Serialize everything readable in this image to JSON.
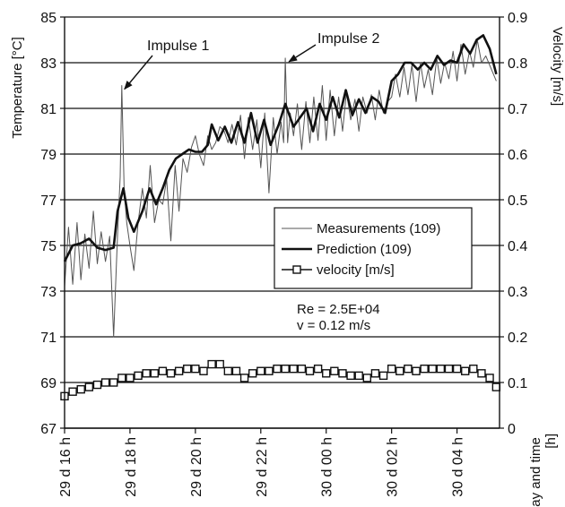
{
  "chart_data": {
    "type": "line",
    "ylabel_left": "Temperature [°C]",
    "ylabel_right": "Velocity [m/s]",
    "xlabel": "Day and time [h]",
    "ylim_left": [
      67,
      85
    ],
    "ylim_right": [
      0,
      0.9
    ],
    "y_ticks_left": [
      "67",
      "69",
      "71",
      "73",
      "75",
      "77",
      "79",
      "81",
      "83",
      "85"
    ],
    "y_ticks_right": [
      "0",
      "0.1",
      "0.2",
      "0.3",
      "0.4",
      "0.5",
      "0.6",
      "0.7",
      "0.8",
      "0.9"
    ],
    "x_ticks": [
      "29 d 16 h",
      "29 d 18 h",
      "29 d 20 h",
      "29 d 22 h",
      "30 d 00 h",
      "30 d 02 h",
      "30 d 04 h"
    ],
    "x_tick_hours": [
      16,
      18,
      20,
      22,
      24,
      26,
      28
    ],
    "xlim_hours": [
      16,
      29.3
    ],
    "grid": "horizontal",
    "legend_position": "center-right",
    "legend": [
      "Measurements (109)",
      "Prediction (109)",
      "velocity [m/s]"
    ],
    "annotations": [
      {
        "text": "Impulse 1",
        "x_hour": 17.75,
        "y": 82
      },
      {
        "text": "Impulse 2",
        "x_hour": 22.75,
        "y": 83.2
      }
    ],
    "stats": [
      "Re = 2.5E+04",
      "v = 0.12 m/s"
    ],
    "series": [
      {
        "name": "Measurements (109)",
        "axis": "left",
        "x": [
          16.0,
          16.12,
          16.25,
          16.38,
          16.5,
          16.62,
          16.75,
          16.88,
          17.0,
          17.12,
          17.25,
          17.38,
          17.5,
          17.62,
          17.7,
          17.75,
          17.82,
          17.9,
          18.0,
          18.12,
          18.25,
          18.38,
          18.5,
          18.62,
          18.75,
          18.88,
          19.0,
          19.12,
          19.25,
          19.38,
          19.5,
          19.62,
          19.75,
          19.88,
          20.0,
          20.12,
          20.25,
          20.38,
          20.5,
          20.62,
          20.75,
          20.88,
          21.0,
          21.12,
          21.25,
          21.38,
          21.5,
          21.62,
          21.75,
          21.88,
          22.0,
          22.12,
          22.25,
          22.38,
          22.5,
          22.62,
          22.7,
          22.75,
          22.82,
          22.9,
          23.0,
          23.12,
          23.25,
          23.38,
          23.5,
          23.62,
          23.75,
          23.88,
          24.0,
          24.12,
          24.25,
          24.38,
          24.5,
          24.62,
          24.75,
          24.88,
          25.0,
          25.12,
          25.25,
          25.38,
          25.5,
          25.62,
          25.75,
          25.88,
          26.0,
          26.12,
          26.25,
          26.38,
          26.5,
          26.62,
          26.75,
          26.88,
          27.0,
          27.12,
          27.25,
          27.38,
          27.5,
          27.62,
          27.75,
          27.88,
          28.0,
          28.12,
          28.25,
          28.38,
          28.5,
          28.62,
          28.75,
          28.88,
          29.2
        ],
        "y": [
          73.2,
          75.8,
          73.3,
          76.0,
          73.5,
          75.5,
          74.0,
          76.5,
          74.2,
          75.6,
          74.3,
          75.4,
          71.0,
          75.5,
          78.0,
          82.0,
          77.5,
          76.0,
          75.0,
          73.9,
          76.0,
          77.5,
          76.2,
          78.5,
          76.0,
          77.0,
          76.8,
          77.9,
          75.2,
          78.5,
          76.5,
          78.8,
          78.2,
          79.3,
          79.8,
          79.0,
          78.5,
          79.8,
          79.2,
          79.5,
          80.2,
          80.0,
          79.5,
          80.3,
          79.4,
          80.7,
          78.8,
          80.6,
          79.2,
          80.5,
          78.4,
          80.8,
          77.3,
          80.6,
          79.0,
          80.4,
          79.5,
          83.2,
          79.5,
          80.8,
          79.8,
          81.2,
          79.2,
          81.3,
          79.5,
          81.5,
          79.6,
          82.0,
          79.6,
          81.8,
          79.8,
          81.5,
          80.0,
          81.7,
          80.5,
          81.4,
          80.0,
          81.5,
          80.8,
          81.6,
          80.5,
          81.8,
          80.8,
          81.3,
          81.5,
          82.5,
          81.5,
          82.8,
          81.6,
          82.9,
          81.3,
          83.0,
          81.9,
          82.7,
          81.6,
          83.2,
          82.1,
          83.0,
          82.3,
          83.5,
          82.2,
          83.8,
          82.5,
          83.5,
          82.8,
          84.0,
          83.0,
          83.3,
          82.2
        ],
        "color": "#555555"
      },
      {
        "name": "Prediction (109)",
        "axis": "left",
        "x": [
          16.0,
          16.25,
          16.5,
          16.75,
          17.0,
          17.25,
          17.5,
          17.62,
          17.8,
          17.95,
          18.12,
          18.38,
          18.6,
          18.8,
          19.0,
          19.2,
          19.4,
          19.6,
          19.8,
          20.0,
          20.2,
          20.38,
          20.5,
          20.7,
          20.9,
          21.1,
          21.3,
          21.5,
          21.7,
          21.9,
          22.1,
          22.3,
          22.55,
          22.75,
          23.0,
          23.2,
          23.4,
          23.6,
          23.8,
          24.0,
          24.2,
          24.4,
          24.6,
          24.8,
          25.0,
          25.2,
          25.4,
          25.6,
          25.8,
          26.0,
          26.2,
          26.4,
          26.6,
          26.8,
          27.0,
          27.2,
          27.4,
          27.6,
          27.8,
          28.0,
          28.2,
          28.4,
          28.6,
          28.8,
          29.0,
          29.2
        ],
        "y": [
          74.3,
          75.0,
          75.1,
          75.3,
          74.9,
          74.8,
          74.9,
          76.5,
          77.5,
          76.2,
          75.6,
          76.5,
          77.5,
          76.8,
          77.5,
          78.3,
          78.8,
          79.0,
          79.2,
          79.1,
          79.1,
          79.4,
          80.3,
          79.6,
          80.2,
          79.5,
          80.4,
          79.5,
          80.8,
          79.5,
          80.5,
          79.4,
          80.3,
          81.2,
          80.2,
          80.6,
          81.0,
          80.0,
          81.2,
          80.5,
          81.5,
          80.6,
          81.8,
          80.7,
          81.4,
          80.8,
          81.5,
          81.3,
          80.8,
          82.2,
          82.5,
          83.0,
          83.0,
          82.7,
          83.0,
          82.7,
          83.3,
          82.9,
          83.1,
          83.0,
          83.8,
          83.4,
          84.0,
          84.2,
          83.6,
          82.5
        ],
        "color": "#111111"
      },
      {
        "name": "velocity [m/s]",
        "axis": "right",
        "x": [
          16.0,
          16.25,
          16.5,
          16.75,
          17.0,
          17.25,
          17.5,
          17.75,
          18.0,
          18.25,
          18.5,
          18.75,
          19.0,
          19.25,
          19.5,
          19.75,
          20.0,
          20.25,
          20.5,
          20.75,
          21.0,
          21.25,
          21.5,
          21.75,
          22.0,
          22.25,
          22.5,
          22.75,
          23.0,
          23.25,
          23.5,
          23.75,
          24.0,
          24.25,
          24.5,
          24.75,
          25.0,
          25.25,
          25.5,
          25.75,
          26.0,
          26.25,
          26.5,
          26.75,
          27.0,
          27.25,
          27.5,
          27.75,
          28.0,
          28.25,
          28.5,
          28.75,
          29.0,
          29.2
        ],
        "y": [
          0.07,
          0.08,
          0.085,
          0.09,
          0.095,
          0.1,
          0.1,
          0.11,
          0.11,
          0.115,
          0.12,
          0.12,
          0.125,
          0.12,
          0.125,
          0.13,
          0.13,
          0.125,
          0.14,
          0.14,
          0.125,
          0.125,
          0.11,
          0.12,
          0.125,
          0.125,
          0.13,
          0.13,
          0.13,
          0.13,
          0.125,
          0.13,
          0.12,
          0.125,
          0.12,
          0.115,
          0.115,
          0.11,
          0.12,
          0.115,
          0.13,
          0.125,
          0.13,
          0.125,
          0.13,
          0.13,
          0.13,
          0.13,
          0.13,
          0.125,
          0.13,
          0.12,
          0.11,
          0.09
        ],
        "color": "#111111"
      }
    ]
  }
}
